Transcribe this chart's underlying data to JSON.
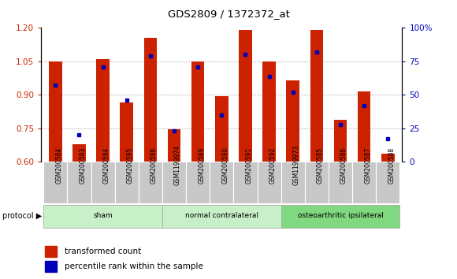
{
  "title": "GDS2809 / 1372372_at",
  "samples": [
    "GSM200584",
    "GSM200593",
    "GSM200594",
    "GSM200595",
    "GSM200596",
    "GSM1199974",
    "GSM200589",
    "GSM200590",
    "GSM200591",
    "GSM200592",
    "GSM1199973",
    "GSM200585",
    "GSM200586",
    "GSM200587",
    "GSM200588"
  ],
  "transformed_count": [
    1.05,
    0.68,
    1.06,
    0.865,
    1.155,
    0.745,
    1.05,
    0.895,
    1.19,
    1.05,
    0.965,
    1.19,
    0.79,
    0.915,
    0.635
  ],
  "percentile_rank": [
    57,
    20,
    71,
    46,
    79,
    23,
    71,
    35,
    80,
    64,
    52,
    82,
    28,
    42,
    17
  ],
  "group_names": [
    "sham",
    "normal contralateral",
    "osteoarthritic ipsilateral"
  ],
  "group_starts": [
    0,
    5,
    10
  ],
  "group_ends": [
    5,
    10,
    15
  ],
  "group_colors": [
    "#c8f0c8",
    "#c8f0c8",
    "#80d880"
  ],
  "ylim_left": [
    0.6,
    1.2
  ],
  "ylim_right": [
    0,
    100
  ],
  "yticks_left": [
    0.6,
    0.75,
    0.9,
    1.05,
    1.2
  ],
  "yticks_right": [
    0,
    25,
    50,
    75,
    100
  ],
  "ytick_labels_right": [
    "0",
    "25",
    "50",
    "75",
    "100%"
  ],
  "grid_lines": [
    0.75,
    0.9,
    1.05
  ],
  "bar_color": "#cc2200",
  "dot_color": "#0000bb",
  "bg_color": "#ffffff",
  "tick_color_left": "#cc2200",
  "tick_color_right": "#0000bb",
  "bar_width": 0.55,
  "sample_box_color": "#c8c8c8",
  "plot_bg": "#ffffff"
}
